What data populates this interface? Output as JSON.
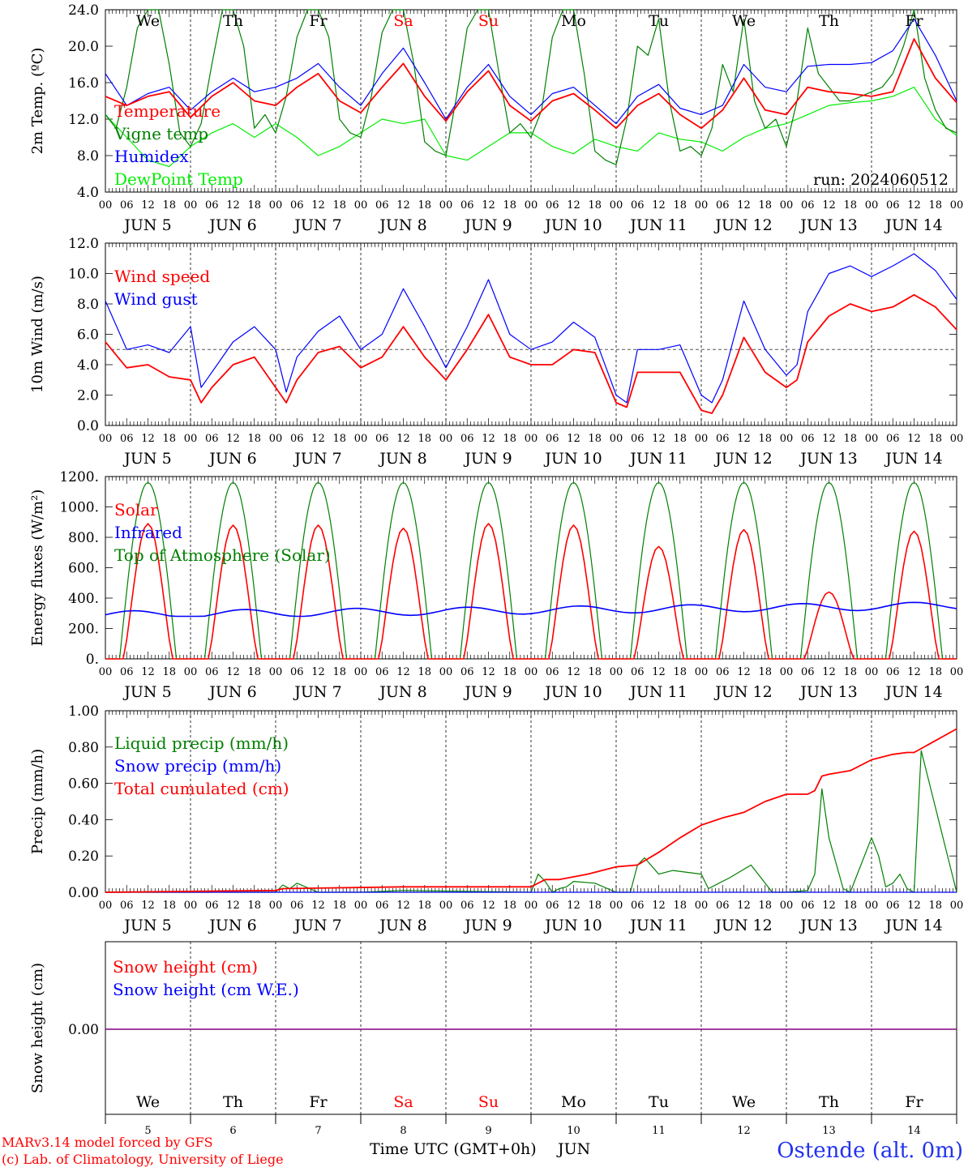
{
  "chart_data": [
    {
      "type": "line",
      "panel": "temperature",
      "ylabel": "2m Temp. (ºC)",
      "ylim": [
        4.0,
        24.0
      ],
      "yticks": [
        "4.0",
        "8.0",
        "12.0",
        "16.0",
        "20.0",
        "24.0"
      ],
      "run_label": "run: 2024060512",
      "x_unit": "hours since JUN 5 00 UTC",
      "series": [
        {
          "name": "Temperature",
          "color": "#ff0000",
          "x": [
            0,
            6,
            12,
            18,
            24,
            30,
            36,
            42,
            48,
            54,
            60,
            66,
            72,
            78,
            84,
            90,
            96,
            102,
            108,
            114,
            120,
            126,
            132,
            138,
            144,
            150,
            156,
            162,
            168,
            174,
            180,
            186,
            192,
            198,
            204,
            210,
            216,
            222,
            228,
            234,
            240
          ],
          "y": [
            14.5,
            13.5,
            14.5,
            15.0,
            12.2,
            14.5,
            16.0,
            14.0,
            13.5,
            15.5,
            17.0,
            14.0,
            12.7,
            15.5,
            18.1,
            14.5,
            11.8,
            15.0,
            17.3,
            13.5,
            11.8,
            14.0,
            14.8,
            13.0,
            11.0,
            13.5,
            14.8,
            12.5,
            11.0,
            13.0,
            16.5,
            13.0,
            12.5,
            15.5,
            15.0,
            14.8,
            14.5,
            15.0,
            20.8,
            16.5,
            13.8
          ]
        },
        {
          "name": "Vigne temp",
          "color": "#008000",
          "x": [
            0,
            3,
            6,
            9,
            12,
            15,
            18,
            21,
            24,
            27,
            30,
            33,
            36,
            39,
            42,
            45,
            48,
            51,
            54,
            57,
            60,
            63,
            66,
            69,
            72,
            75,
            78,
            81,
            84,
            87,
            90,
            93,
            96,
            99,
            102,
            105,
            108,
            111,
            114,
            117,
            120,
            123,
            126,
            129,
            132,
            135,
            138,
            141,
            144,
            147,
            150,
            153,
            156,
            159,
            162,
            165,
            168,
            171,
            174,
            177,
            180,
            183,
            186,
            189,
            192,
            195,
            198,
            201,
            204,
            207,
            210,
            213,
            216,
            219,
            222,
            225,
            228,
            231,
            234,
            237,
            240
          ],
          "y": [
            12.5,
            11.0,
            15.5,
            22.0,
            24.0,
            24.0,
            18.0,
            10.5,
            9.0,
            11.5,
            18.0,
            24.0,
            24.0,
            20.0,
            11.0,
            12.5,
            10.5,
            14.5,
            21.0,
            24.0,
            24.0,
            21.0,
            12.0,
            10.5,
            10.0,
            14.5,
            21.5,
            24.0,
            24.0,
            18.0,
            9.5,
            8.5,
            8.0,
            14.5,
            22.0,
            24.0,
            24.0,
            17.0,
            10.5,
            11.5,
            10.0,
            13.0,
            21.0,
            24.0,
            24.0,
            17.0,
            8.5,
            7.5,
            7.0,
            12.0,
            20.0,
            19.0,
            23.0,
            14.0,
            8.5,
            9.0,
            8.0,
            11.0,
            18.0,
            15.0,
            23.0,
            14.0,
            11.0,
            12.0,
            9.0,
            14.0,
            22.0,
            17.0,
            15.5,
            14.0,
            14.0,
            14.5,
            15.0,
            15.5,
            17.0,
            20.0,
            24.0,
            16.5,
            13.0,
            11.0,
            10.5
          ]
        },
        {
          "name": "Humidex",
          "color": "#0000ff",
          "x": [
            0,
            6,
            12,
            18,
            24,
            30,
            36,
            42,
            48,
            54,
            60,
            66,
            72,
            78,
            84,
            90,
            96,
            102,
            108,
            114,
            120,
            126,
            132,
            138,
            144,
            150,
            156,
            162,
            168,
            174,
            180,
            186,
            192,
            198,
            204,
            210,
            216,
            222,
            228,
            234,
            240
          ],
          "y": [
            17.0,
            13.5,
            14.8,
            15.5,
            13.0,
            15.0,
            16.5,
            15.0,
            15.5,
            16.5,
            18.1,
            15.5,
            13.5,
            17.0,
            19.8,
            16.0,
            12.0,
            15.5,
            18.0,
            14.5,
            12.5,
            14.8,
            15.5,
            13.5,
            11.5,
            14.5,
            15.8,
            13.2,
            12.5,
            13.5,
            18.0,
            15.5,
            15.0,
            17.8,
            18.0,
            18.0,
            18.2,
            19.5,
            23.0,
            19.0,
            14.0
          ]
        },
        {
          "name": "DewPoint Temp",
          "color": "#00ee00",
          "x": [
            0,
            6,
            12,
            18,
            24,
            30,
            36,
            42,
            48,
            54,
            60,
            66,
            72,
            78,
            84,
            90,
            96,
            102,
            108,
            114,
            120,
            126,
            132,
            138,
            144,
            150,
            156,
            162,
            168,
            174,
            180,
            186,
            192,
            198,
            204,
            210,
            216,
            222,
            228,
            234,
            240
          ],
          "y": [
            12.5,
            10.0,
            7.5,
            6.8,
            9.0,
            10.5,
            11.5,
            10.0,
            11.5,
            10.0,
            8.0,
            9.0,
            10.5,
            12.0,
            11.5,
            12.0,
            8.0,
            7.5,
            9.0,
            10.5,
            10.5,
            9.0,
            8.2,
            9.8,
            9.0,
            8.5,
            10.5,
            9.8,
            9.5,
            8.5,
            10.0,
            11.0,
            11.5,
            12.5,
            13.5,
            13.8,
            14.0,
            14.5,
            15.5,
            12.0,
            10.2
          ]
        }
      ]
    },
    {
      "type": "line",
      "panel": "wind",
      "ylabel": "10m Wind (m/s)",
      "ylim": [
        0.0,
        12.0
      ],
      "yticks": [
        "0.0",
        "2.0",
        "4.0",
        "6.0",
        "8.0",
        "10.0",
        "12.0"
      ],
      "reference_line": 5.0,
      "series": [
        {
          "name": "Wind speed",
          "color": "#ff0000",
          "x": [
            0,
            6,
            12,
            18,
            24,
            27,
            30,
            36,
            42,
            48,
            51,
            54,
            60,
            66,
            72,
            78,
            84,
            90,
            96,
            102,
            108,
            114,
            120,
            126,
            132,
            138,
            144,
            147,
            150,
            156,
            162,
            168,
            171,
            174,
            180,
            186,
            192,
            195,
            198,
            204,
            210,
            216,
            222,
            228,
            234,
            240
          ],
          "y": [
            5.5,
            3.8,
            4.0,
            3.2,
            3.0,
            1.5,
            2.5,
            4.0,
            4.5,
            2.5,
            1.5,
            3.0,
            4.8,
            5.2,
            3.8,
            4.5,
            6.5,
            4.5,
            3.0,
            5.0,
            7.3,
            4.5,
            4.0,
            4.0,
            5.0,
            4.8,
            1.5,
            1.2,
            3.5,
            3.5,
            3.5,
            1.0,
            0.8,
            2.0,
            5.8,
            3.5,
            2.5,
            3.0,
            5.5,
            7.2,
            8.0,
            7.5,
            7.8,
            8.6,
            7.8,
            6.3
          ]
        },
        {
          "name": "Wind gust",
          "color": "#0000ff",
          "x": [
            0,
            6,
            12,
            18,
            24,
            27,
            30,
            36,
            42,
            48,
            51,
            54,
            60,
            66,
            72,
            78,
            84,
            90,
            96,
            102,
            108,
            114,
            120,
            126,
            132,
            138,
            144,
            147,
            150,
            156,
            162,
            168,
            171,
            174,
            180,
            186,
            192,
            195,
            198,
            204,
            210,
            216,
            222,
            228,
            234,
            240
          ],
          "y": [
            8.2,
            5.0,
            5.3,
            4.8,
            6.5,
            2.5,
            3.5,
            5.5,
            6.5,
            5.0,
            2.2,
            4.5,
            6.2,
            7.2,
            5.0,
            6.0,
            9.0,
            6.5,
            3.8,
            6.5,
            9.6,
            6.0,
            5.0,
            5.5,
            6.8,
            5.8,
            2.0,
            1.5,
            5.0,
            5.0,
            5.3,
            2.0,
            1.5,
            3.0,
            8.2,
            5.0,
            3.3,
            4.0,
            7.5,
            10.0,
            10.5,
            9.8,
            10.5,
            11.3,
            10.2,
            8.3
          ]
        }
      ]
    },
    {
      "type": "line",
      "panel": "energy",
      "ylabel": "Energy fluxes (W/m²)",
      "ylim": [
        0,
        1200
      ],
      "yticks": [
        "0.",
        "200.",
        "400.",
        "600.",
        "800.",
        "1000.",
        "1200."
      ],
      "series": [
        {
          "name": "Solar",
          "color": "#ff0000",
          "daily_peaks": [
            890,
            880,
            880,
            860,
            890,
            880,
            740,
            850,
            440,
            840
          ]
        },
        {
          "name": "Infrared",
          "color": "#0000ff",
          "approx_range": [
            280,
            380
          ]
        },
        {
          "name": "Top of Atmosphere (Solar)",
          "color": "#008000",
          "daily_peaks": [
            1160,
            1160,
            1160,
            1160,
            1160,
            1160,
            1160,
            1160,
            1160,
            1160
          ]
        }
      ]
    },
    {
      "type": "line",
      "panel": "precipitation",
      "ylabel": "Precip (mm/h)",
      "ylim": [
        0.0,
        1.0
      ],
      "yticks": [
        "0.00",
        "0.20",
        "0.40",
        "0.60",
        "0.80",
        "1.00"
      ],
      "series": [
        {
          "name": "Liquid precip (mm/h)",
          "color": "#008000",
          "x": [
            0,
            30,
            32,
            34,
            48,
            50,
            52,
            54,
            60,
            66,
            72,
            84,
            120,
            122,
            124,
            126,
            128,
            130,
            132,
            138,
            144,
            148,
            150,
            152,
            156,
            160,
            168,
            170,
            176,
            182,
            186,
            188,
            192,
            198,
            200,
            202,
            204,
            208,
            210,
            212,
            216,
            218,
            220,
            222,
            224,
            226,
            228,
            230,
            240
          ],
          "y": [
            0,
            0,
            0.01,
            0,
            0,
            0.04,
            0.02,
            0.05,
            0,
            0,
            0,
            0.01,
            0,
            0.1,
            0.06,
            0,
            0.02,
            0.03,
            0.06,
            0.05,
            0,
            0,
            0.15,
            0.19,
            0.1,
            0.12,
            0.1,
            0.02,
            0.08,
            0.15,
            0.05,
            0,
            0,
            0.01,
            0.1,
            0.57,
            0.3,
            0.02,
            0,
            0.1,
            0.3,
            0.2,
            0.03,
            0.05,
            0.1,
            0.02,
            0,
            0.78,
            0
          ]
        },
        {
          "name": "Snow precip (mm/h)",
          "color": "#0000ff",
          "x": [
            0,
            240
          ],
          "y": [
            0,
            0
          ]
        },
        {
          "name": "Total cumulated (cm)",
          "color": "#ff0000",
          "x": [
            0,
            48,
            50,
            84,
            120,
            124,
            128,
            136,
            144,
            150,
            156,
            162,
            168,
            174,
            180,
            186,
            192,
            198,
            200,
            202,
            204,
            210,
            216,
            222,
            226,
            228,
            240
          ],
          "y": [
            0,
            0.01,
            0.02,
            0.03,
            0.03,
            0.07,
            0.07,
            0.1,
            0.14,
            0.15,
            0.22,
            0.3,
            0.37,
            0.41,
            0.44,
            0.5,
            0.54,
            0.54,
            0.56,
            0.64,
            0.65,
            0.67,
            0.73,
            0.76,
            0.77,
            0.77,
            0.9
          ]
        }
      ]
    },
    {
      "type": "line",
      "panel": "snow",
      "ylabel": "Snow height (cm)",
      "yticks": [
        "0.00"
      ],
      "series": [
        {
          "name": "Snow height (cm)",
          "color": "#ff0000",
          "x": [
            0,
            240
          ],
          "y": [
            0,
            0
          ]
        },
        {
          "name": "Snow height (cm W.E.)",
          "color": "#0000ff",
          "x": [
            0,
            240
          ],
          "y": [
            0,
            0
          ]
        }
      ]
    }
  ],
  "axis": {
    "hour_ticks": [
      "00",
      "06",
      "12",
      "18"
    ],
    "day_labels": [
      "JUN  5",
      "JUN  6",
      "JUN  7",
      "JUN  8",
      "JUN  9",
      "JUN 10",
      "JUN 11",
      "JUN 12",
      "JUN 13",
      "JUN 14"
    ],
    "weekdays": [
      "We",
      "Th",
      "Fr",
      "Sa",
      "Su",
      "Mo",
      "Tu",
      "We",
      "Th",
      "Fr"
    ],
    "weekend_color": "#ff0000",
    "bottom_days": [
      "5",
      "6",
      "7",
      "8",
      "9",
      "10",
      "11",
      "12",
      "13",
      "14"
    ],
    "xlabel": "Time UTC (GMT+0h)",
    "month": "JUN"
  },
  "footer": {
    "credit_line1": "MARv3.14 model forced by GFS",
    "credit_line2": "(c) Lab. of Climatology, University of Liege",
    "station": "Ostende (alt. 0m)"
  }
}
